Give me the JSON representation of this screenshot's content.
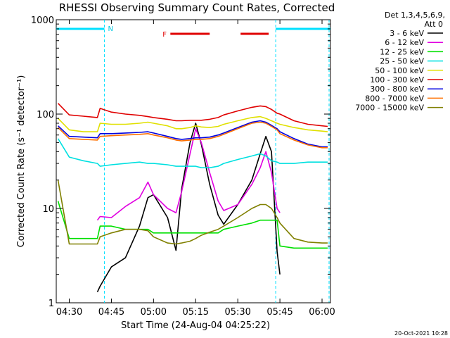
{
  "chart_data": {
    "type": "line",
    "title": "RHESSI Observing Summary Count Rates, Corrected",
    "xlabel": "Start Time (24-Aug-04 04:25:22)",
    "ylabel": "Corrected Count Rate (s⁻¹ detector⁻¹)",
    "yscale": "log",
    "ylim": [
      1,
      1000
    ],
    "xlim": [
      "04:25:22",
      "06:03:00"
    ],
    "grid": false,
    "legend_position": "right",
    "x_ticks": [
      "04:30",
      "04:45",
      "05:00",
      "05:15",
      "05:30",
      "05:45",
      "06:00"
    ],
    "y_ticks": [
      "1",
      "10",
      "100",
      "1000"
    ],
    "detectors_label": "Det 1,3,4,5,6,9,",
    "attenuator_label": "Att 0",
    "timestamp": "20-Oct-2021 10:28",
    "annotations": {
      "night_marker": "N",
      "flare_marker": "F",
      "night_intervals": [
        [
          "04:25:22",
          "04:42:30"
        ],
        [
          "05:43:30",
          "06:03:00"
        ]
      ],
      "flare_intervals": [
        [
          "05:06:00",
          "05:20:00"
        ],
        [
          "05:31:00",
          "05:41:00"
        ]
      ],
      "night_boundary_times": [
        "04:42:30",
        "05:43:30",
        "06:02:30"
      ]
    },
    "x": [
      "04:26",
      "04:30",
      "04:35",
      "04:40",
      "04:41",
      "04:45",
      "04:50",
      "04:55",
      "04:58",
      "05:00",
      "05:05",
      "05:08",
      "05:10",
      "05:13",
      "05:15",
      "05:17",
      "05:20",
      "05:23",
      "05:25",
      "05:30",
      "05:35",
      "05:38",
      "05:40",
      "05:42",
      "05:44",
      "05:45",
      "05:50",
      "05:55",
      "06:00",
      "06:02"
    ],
    "series": [
      {
        "name": "3 - 6 keV",
        "color": "#000000",
        "values": [
          null,
          null,
          null,
          1.3,
          1.5,
          2.4,
          3.0,
          6.5,
          13,
          14,
          8.0,
          3.6,
          16,
          50,
          80,
          48,
          18,
          8.5,
          6.8,
          11,
          20,
          38,
          58,
          40,
          3.5,
          2.0,
          null,
          null,
          null,
          null
        ]
      },
      {
        "name": "6 - 12 keV",
        "color": "#e000e0",
        "values": [
          null,
          null,
          null,
          7.5,
          8.2,
          8.0,
          10.5,
          13,
          19,
          14,
          10,
          9.0,
          15,
          38,
          70,
          50,
          24,
          12,
          9.5,
          11,
          18,
          27,
          40,
          24,
          10,
          9.0,
          null,
          null,
          null,
          null
        ]
      },
      {
        "name": "12 - 25 keV",
        "color": "#00e000",
        "values": [
          12,
          4.8,
          4.8,
          4.8,
          6.5,
          6.5,
          6.0,
          6.0,
          6.0,
          5.5,
          5.5,
          5.5,
          5.5,
          5.5,
          5.5,
          5.5,
          5.5,
          5.5,
          6.0,
          6.5,
          7.0,
          7.5,
          7.5,
          7.5,
          7.5,
          4.0,
          3.8,
          3.8,
          3.8,
          3.8
        ]
      },
      {
        "name": "25 - 50 keV",
        "color": "#00e0e0",
        "values": [
          55,
          35,
          32,
          30,
          28,
          29,
          30,
          31,
          30,
          30,
          29,
          28,
          28,
          28,
          28,
          27,
          27,
          28,
          30,
          33,
          36,
          38,
          36,
          32,
          31,
          30,
          30,
          31,
          31,
          31
        ]
      },
      {
        "name": "50 - 100 keV",
        "color": "#e0e000",
        "values": [
          90,
          68,
          65,
          65,
          80,
          78,
          78,
          80,
          82,
          80,
          75,
          70,
          70,
          72,
          75,
          73,
          72,
          74,
          78,
          85,
          92,
          94,
          90,
          85,
          80,
          78,
          72,
          68,
          66,
          65
        ]
      },
      {
        "name": "100 - 300 keV",
        "color": "#e00000",
        "values": [
          130,
          98,
          95,
          92,
          115,
          105,
          100,
          97,
          94,
          92,
          88,
          85,
          85,
          86,
          86,
          86,
          88,
          92,
          98,
          108,
          118,
          122,
          120,
          112,
          102,
          100,
          85,
          78,
          75,
          74
        ]
      },
      {
        "name": "300 - 800 keV",
        "color": "#0000e0",
        "values": [
          75,
          58,
          57,
          56,
          62,
          62,
          63,
          64,
          65,
          63,
          58,
          55,
          54,
          55,
          56,
          56,
          57,
          60,
          63,
          72,
          82,
          85,
          82,
          76,
          70,
          65,
          55,
          48,
          45,
          45
        ]
      },
      {
        "name": "800 - 7000 keV",
        "color": "#ff7000",
        "values": [
          72,
          55,
          54,
          53,
          58,
          59,
          60,
          61,
          62,
          60,
          56,
          53,
          52,
          53,
          54,
          54,
          55,
          58,
          61,
          70,
          80,
          82,
          80,
          74,
          68,
          62,
          53,
          47,
          44,
          44
        ]
      },
      {
        "name": "7000 - 15000 keV",
        "color": "#808000",
        "values": [
          20,
          4.2,
          4.2,
          4.2,
          5.0,
          5.5,
          6.0,
          6.0,
          5.8,
          5.0,
          4.3,
          4.2,
          4.3,
          4.5,
          4.8,
          5.2,
          5.6,
          6.0,
          6.5,
          8.0,
          10,
          11,
          11,
          10,
          8.0,
          7.0,
          4.8,
          4.4,
          4.3,
          4.3
        ]
      }
    ]
  }
}
